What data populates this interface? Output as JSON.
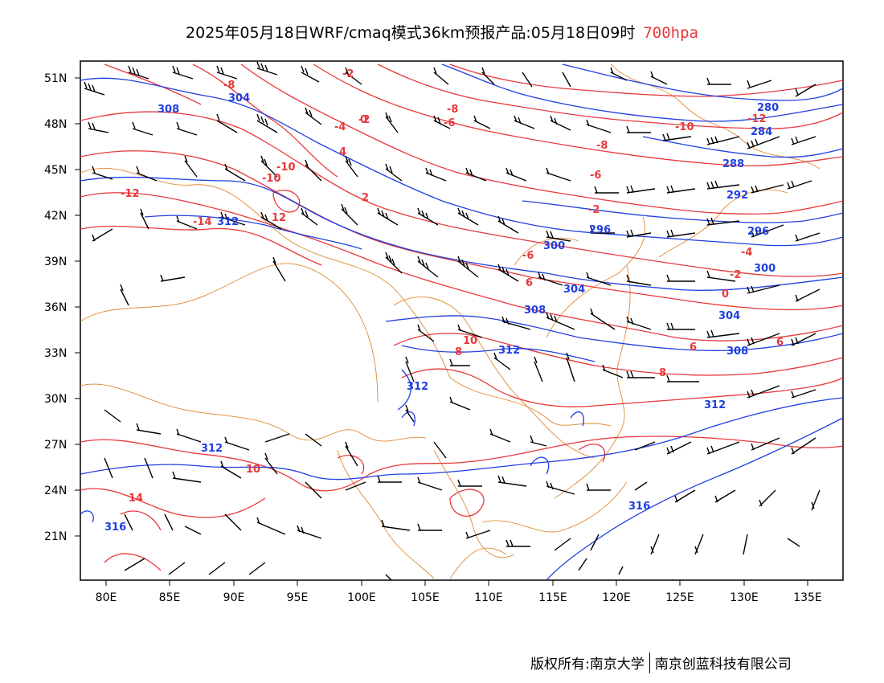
{
  "header": {
    "title": "2025年05月18日WRF/cmaq模式36km预报产品:05月18日09时",
    "level": "700hpa"
  },
  "axes": {
    "lat_labels": [
      "51N",
      "48N",
      "45N",
      "42N",
      "39N",
      "36N",
      "33N",
      "30N",
      "27N",
      "24N",
      "21N"
    ],
    "lon_labels": [
      "80E",
      "85E",
      "90E",
      "95E",
      "100E",
      "105E",
      "110E",
      "115E",
      "120E",
      "125E",
      "130E",
      "135E"
    ]
  },
  "contours": {
    "height_labels": [
      "308",
      "304",
      "280",
      "284",
      "288",
      "292",
      "296",
      "296",
      "300",
      "300",
      "304",
      "304",
      "308",
      "308",
      "312",
      "312",
      "312",
      "312",
      "312",
      "316",
      "316"
    ],
    "temp_labels": [
      "-8",
      "-2",
      "-10",
      "-12",
      "-8",
      "-6",
      "-6",
      "-4",
      "-2",
      "-2",
      "0",
      "-2",
      "-4",
      "-6",
      "-8",
      "-10",
      "-10",
      "-12",
      "-14",
      "10",
      "10",
      "12",
      "14",
      "8",
      "8",
      "6",
      "6",
      "6",
      "4",
      "2",
      "0"
    ]
  },
  "legend": {
    "height_color": "#1f3fe0",
    "temp_color": "#e8383a",
    "border_color": "#e08a30",
    "wind_color": "#000000"
  },
  "footer": {
    "left": "版权所有:南京大学",
    "right": "南京创蓝科技有限公司"
  }
}
